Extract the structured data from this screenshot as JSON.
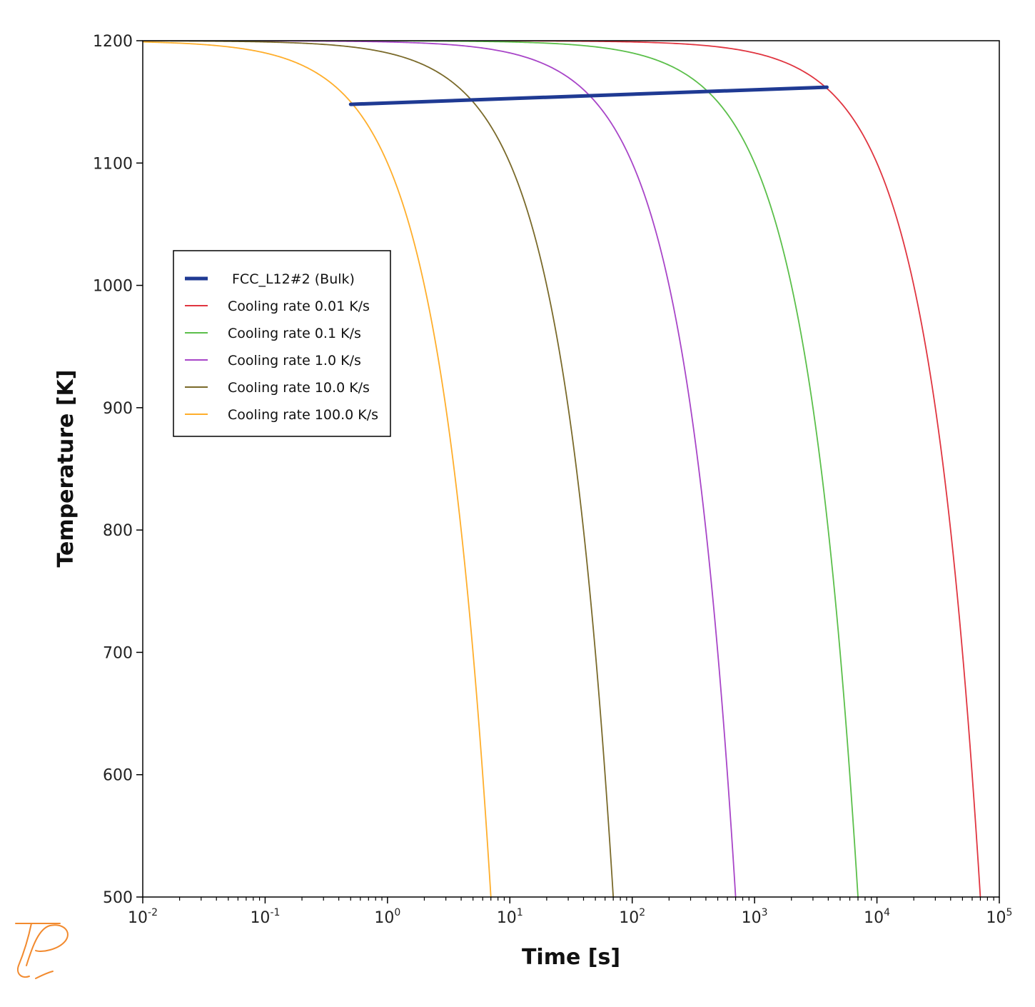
{
  "chart_data": {
    "type": "line",
    "xlabel": "Time [s]",
    "ylabel": "Temperature [K]",
    "x_scale": "log",
    "xlim": [
      0.01,
      100000
    ],
    "ylim": [
      500,
      1200
    ],
    "x_ticks": [
      {
        "value": 0.01,
        "base": "10",
        "exp": "-2"
      },
      {
        "value": 0.1,
        "base": "10",
        "exp": "-1"
      },
      {
        "value": 1,
        "base": "10",
        "exp": "0"
      },
      {
        "value": 10,
        "base": "10",
        "exp": "1"
      },
      {
        "value": 100,
        "base": "10",
        "exp": "2"
      },
      {
        "value": 1000,
        "base": "10",
        "exp": "3"
      },
      {
        "value": 10000,
        "base": "10",
        "exp": "4"
      },
      {
        "value": 100000,
        "base": "10",
        "exp": "5"
      }
    ],
    "y_ticks": [
      500,
      600,
      700,
      800,
      900,
      1000,
      1100,
      1200
    ],
    "grid": false,
    "legend_position": "left",
    "series": [
      {
        "name": "FCC_L12#2 (Bulk)",
        "color": "#1f3a93",
        "kind": "bulk",
        "points": [
          [
            0.5,
            1148
          ],
          [
            3900,
            1162
          ]
        ]
      },
      {
        "name": "Cooling rate 0.01 K/s",
        "color": "#e03540",
        "kind": "cooling",
        "rate": 0.01,
        "t0": 1200
      },
      {
        "name": "Cooling rate 0.1 K/s",
        "color": "#5bbf4a",
        "kind": "cooling",
        "rate": 0.1,
        "t0": 1200
      },
      {
        "name": "Cooling rate 1.0 K/s",
        "color": "#a845c8",
        "kind": "cooling",
        "rate": 1.0,
        "t0": 1200
      },
      {
        "name": "Cooling rate 10.0 K/s",
        "color": "#7a6a2a",
        "kind": "cooling",
        "rate": 10.0,
        "t0": 1200
      },
      {
        "name": "Cooling rate 100.0 K/s",
        "color": "#ffae2b",
        "kind": "cooling",
        "rate": 100.0,
        "t0": 1200
      }
    ]
  },
  "logo": {
    "name": "thermo-calc-logo",
    "color": "#f28a2e"
  }
}
